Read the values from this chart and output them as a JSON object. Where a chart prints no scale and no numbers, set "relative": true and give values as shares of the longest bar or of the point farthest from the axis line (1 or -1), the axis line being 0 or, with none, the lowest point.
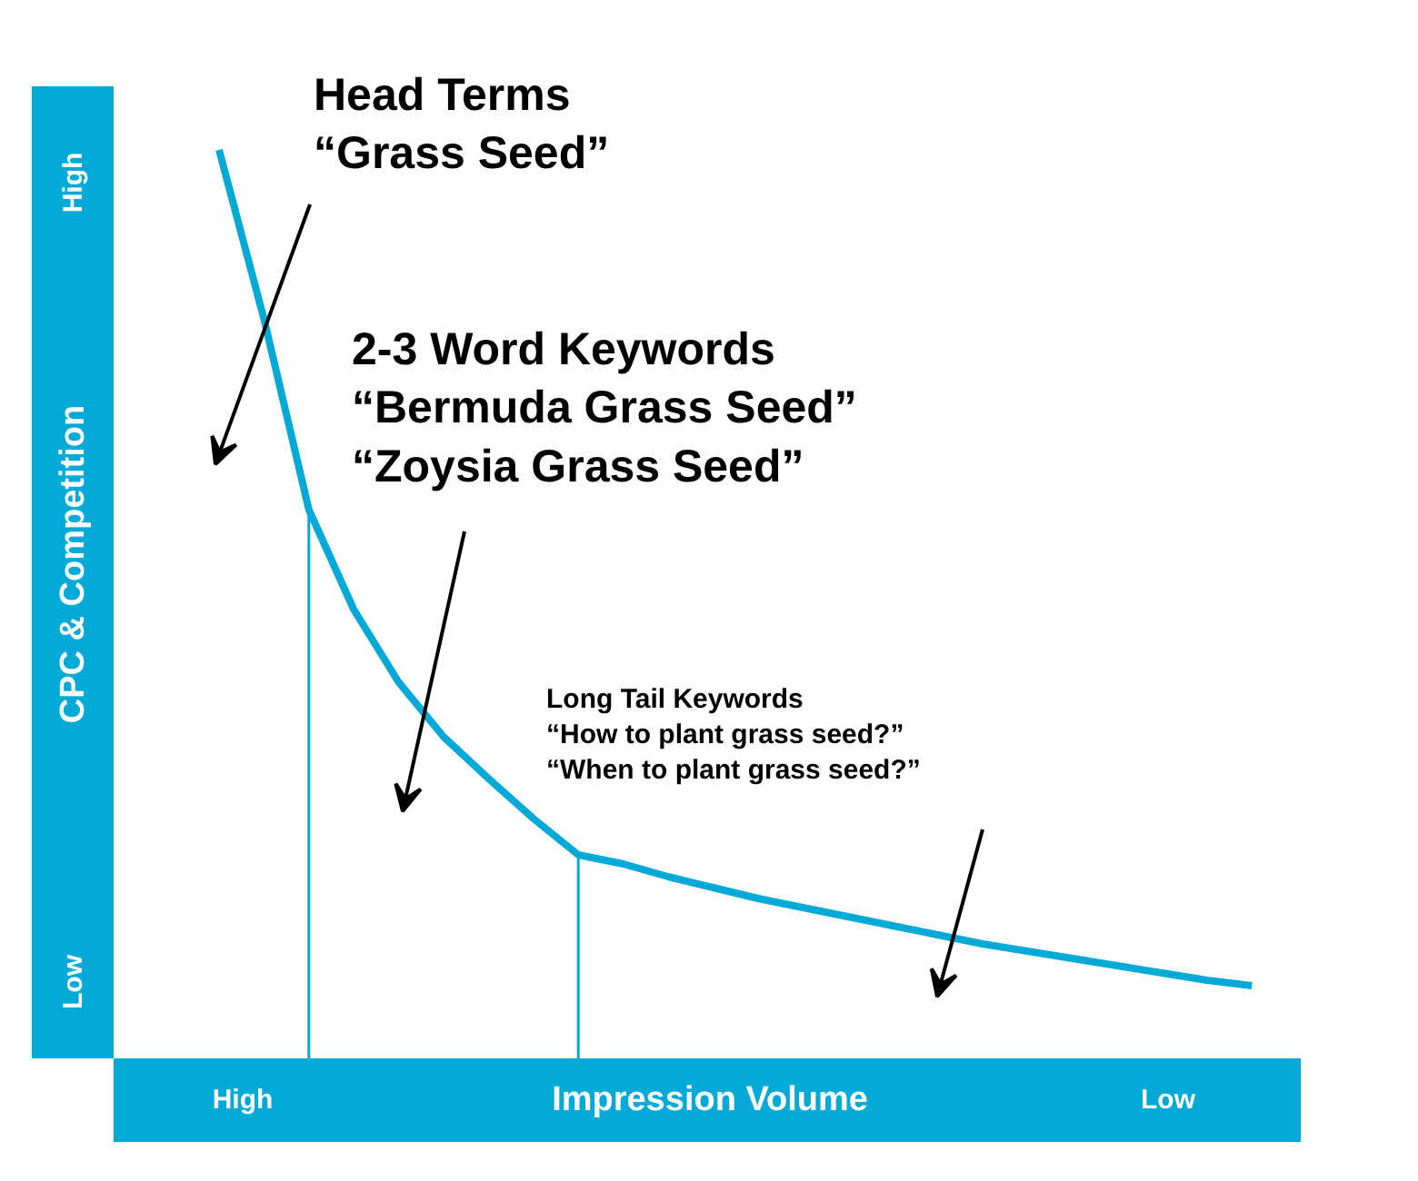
{
  "chart_data": {
    "type": "line",
    "relative": true,
    "xlabel": "Impression Volume",
    "ylabel": "CPC & Competition",
    "categories": [
      null,
      null,
      null,
      null,
      null,
      null,
      null,
      null,
      null,
      null,
      null,
      null,
      null,
      null,
      null,
      null,
      null,
      null,
      null,
      null,
      null,
      null,
      null,
      null
    ],
    "series": [
      {
        "color": "#00a9d6",
        "values": [
          1.0,
          0.814,
          0.604,
          0.494,
          0.414,
          0.354,
          0.308,
          0.264,
          0.224,
          0.214,
          0.2,
          0.188,
          0.176,
          0.166,
          0.156,
          0.146,
          0.136,
          0.126,
          0.118,
          0.11,
          0.102,
          0.094,
          0.086,
          0.08
        ]
      }
    ],
    "annotations": [
      "Head Terms\n“Grass Seed”",
      "2-3 Word Keywords\n“Bermuda Grass Seed”\n“Zoysia Grass Seed”",
      "Long Tail Keywords\n“How to plant grass seed?”\n“When to plant grass seed?”",
      "High",
      "Low",
      "High",
      "Low"
    ],
    "grid": false,
    "marker": "none",
    "line_style": "solid"
  }
}
